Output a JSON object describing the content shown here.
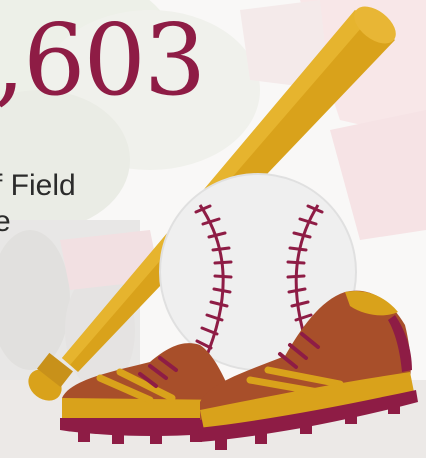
{
  "stat": {
    "number_text": ",603",
    "description_lines": [
      "f Field",
      "e"
    ]
  },
  "icons": [
    "baseball-bat-icon",
    "baseball-icon",
    "cleats-icon"
  ],
  "colors": {
    "number": "#8e1c45",
    "text": "#2b2b2b",
    "bat": "#d9a21b",
    "shoe": "#a84f2a",
    "shoe_accent": "#d9a21b",
    "sole": "#8e1c45",
    "ball_stitch": "#8e1c45"
  }
}
